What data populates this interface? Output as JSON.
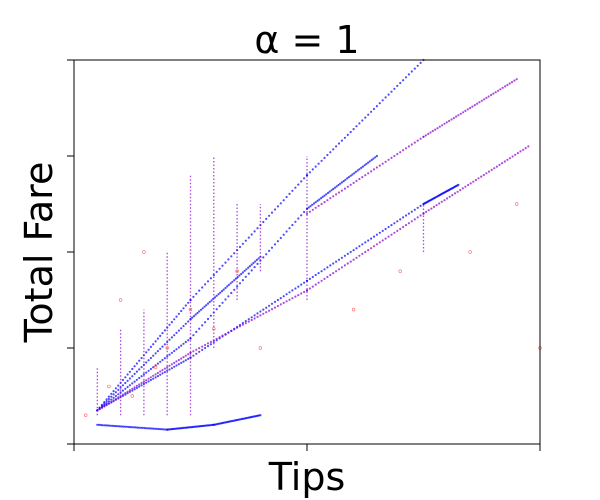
{
  "chart_data": {
    "type": "scatter",
    "title": "α =  1",
    "xlabel": "Tips",
    "ylabel": "Total Fare",
    "xlim": [
      0,
      20
    ],
    "ylim": [
      0,
      40
    ],
    "grid": false,
    "legend": "none",
    "x_ticks": [
      0,
      10,
      20
    ],
    "y_ticks": [
      0,
      10,
      20,
      30,
      40
    ],
    "colors": {
      "red": "#ff0000",
      "blue": "#0000ff",
      "mixed": "#8800cc"
    },
    "series": [
      {
        "color": "#0000ff",
        "style": "line-of-points",
        "points": [
          [
            1,
            3.5
          ],
          [
            5,
            9
          ],
          [
            10,
            17
          ],
          [
            15,
            25
          ],
          [
            16.5,
            27
          ]
        ]
      },
      {
        "color": "#0000ff",
        "style": "line-of-points",
        "points": [
          [
            1,
            3.5
          ],
          [
            5,
            11
          ],
          [
            10,
            24.5
          ],
          [
            13,
            30
          ]
        ]
      },
      {
        "color": "#0000ff",
        "style": "line-of-points",
        "points": [
          [
            1,
            3.5
          ],
          [
            5,
            13
          ],
          [
            8,
            19.5
          ]
        ]
      },
      {
        "color": "#0000ff",
        "style": "line-of-points",
        "points": [
          [
            1,
            3.5
          ],
          [
            5,
            15
          ],
          [
            10,
            28
          ],
          [
            15,
            40
          ]
        ]
      },
      {
        "color": "#8800cc",
        "style": "line-of-points",
        "points": [
          [
            1,
            3.5
          ],
          [
            5,
            9.5
          ],
          [
            10,
            16
          ],
          [
            15,
            24
          ],
          [
            19.5,
            31
          ]
        ]
      },
      {
        "color": "#8800cc",
        "style": "line-of-points",
        "points": [
          [
            10,
            24
          ],
          [
            15,
            32
          ],
          [
            19,
            38
          ]
        ]
      },
      {
        "color": "#0000ff",
        "style": "line-of-points",
        "points": [
          [
            1,
            2
          ],
          [
            4,
            1.5
          ],
          [
            6,
            2
          ],
          [
            8,
            3
          ]
        ]
      },
      {
        "color": "#8800cc",
        "style": "vertical-stripes",
        "points": [
          [
            1,
            3
          ],
          [
            1,
            8
          ],
          [
            2,
            3
          ],
          [
            2,
            12
          ],
          [
            3,
            3
          ],
          [
            3,
            14
          ],
          [
            4,
            3
          ],
          [
            4,
            20
          ],
          [
            5,
            3
          ],
          [
            5,
            28
          ],
          [
            6,
            10
          ],
          [
            6,
            30
          ],
          [
            7,
            15
          ],
          [
            7,
            25
          ],
          [
            8,
            18
          ],
          [
            8,
            25
          ],
          [
            10,
            15
          ],
          [
            10,
            30
          ],
          [
            15,
            20
          ],
          [
            15,
            25
          ]
        ]
      },
      {
        "color": "#ff0000",
        "style": "cloud",
        "points": [
          [
            0.5,
            3
          ],
          [
            1.5,
            6
          ],
          [
            2.5,
            5
          ],
          [
            3.5,
            8
          ],
          [
            4,
            10
          ],
          [
            5,
            14
          ],
          [
            6,
            12
          ],
          [
            7,
            18
          ],
          [
            3,
            20
          ],
          [
            2,
            15
          ],
          [
            8,
            10
          ],
          [
            12,
            14
          ],
          [
            14,
            18
          ],
          [
            17,
            20
          ],
          [
            19,
            25
          ],
          [
            20,
            10
          ]
        ]
      }
    ]
  }
}
